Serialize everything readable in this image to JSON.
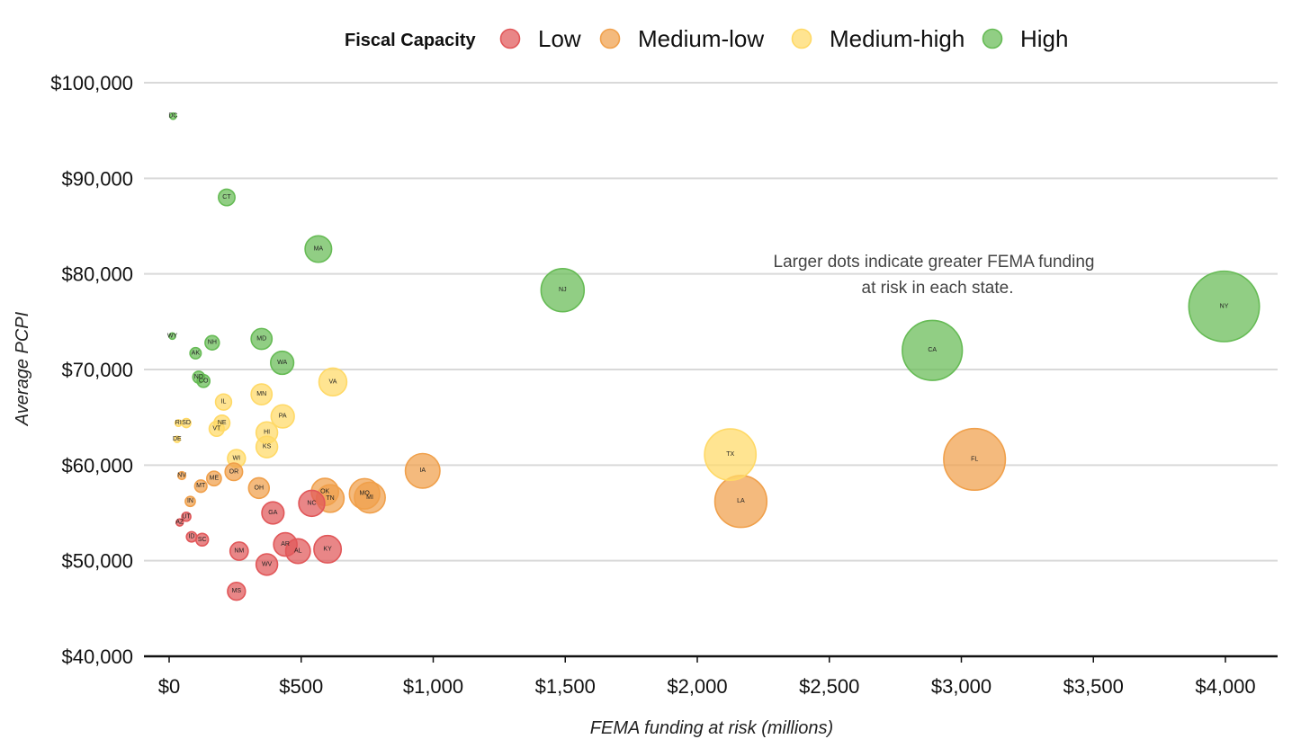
{
  "chart_data": {
    "type": "scatter",
    "legend_title": "Fiscal Capacity",
    "legend_position": "top",
    "xlabel": "FEMA funding at risk (millions)",
    "ylabel": "Average PCPI",
    "annotation": [
      "Larger dots indicate greater FEMA funding",
      "at risk in each state."
    ],
    "xlim": [
      -100,
      4200
    ],
    "ylim": [
      40000,
      100000
    ],
    "x_ticks": [
      0,
      500,
      1000,
      1500,
      2000,
      2500,
      3000,
      3500,
      4000
    ],
    "x_tick_labels": [
      "$0",
      "$500",
      "$1,000",
      "$1,500",
      "$2,000",
      "$2,500",
      "$3,000",
      "$3,500",
      "$4,000"
    ],
    "y_ticks": [
      40000,
      50000,
      60000,
      70000,
      80000,
      90000,
      100000
    ],
    "y_tick_labels": [
      "$40,000",
      "$50,000",
      "$60,000",
      "$70,000",
      "$80,000",
      "$90,000",
      "$100,000"
    ],
    "grid": "horizontal",
    "categories": [
      {
        "name": "Low",
        "color": "#e15759"
      },
      {
        "name": "Medium-low",
        "color": "#f0a04b"
      },
      {
        "name": "Medium-high",
        "color": "#ffd966"
      },
      {
        "name": "High",
        "color": "#66bb55"
      }
    ],
    "points": [
      {
        "label": "DC",
        "x": 15,
        "y": 96500,
        "group": "High"
      },
      {
        "label": "CT",
        "x": 218,
        "y": 88000,
        "group": "High"
      },
      {
        "label": "MA",
        "x": 565,
        "y": 82600,
        "group": "High"
      },
      {
        "label": "NJ",
        "x": 1490,
        "y": 78300,
        "group": "High"
      },
      {
        "label": "NY",
        "x": 3995,
        "y": 76600,
        "group": "High"
      },
      {
        "label": "CA",
        "x": 2890,
        "y": 72000,
        "group": "High"
      },
      {
        "label": "WY",
        "x": 12,
        "y": 73500,
        "group": "High"
      },
      {
        "label": "NH",
        "x": 163,
        "y": 72800,
        "group": "High"
      },
      {
        "label": "MD",
        "x": 350,
        "y": 73200,
        "group": "High"
      },
      {
        "label": "AK",
        "x": 100,
        "y": 71700,
        "group": "High"
      },
      {
        "label": "WA",
        "x": 428,
        "y": 70700,
        "group": "High"
      },
      {
        "label": "ND",
        "x": 112,
        "y": 69200,
        "group": "High"
      },
      {
        "label": "CO",
        "x": 130,
        "y": 68800,
        "group": "High"
      },
      {
        "label": "VA",
        "x": 620,
        "y": 68700,
        "group": "Medium-high"
      },
      {
        "label": "MN",
        "x": 350,
        "y": 67400,
        "group": "Medium-high"
      },
      {
        "label": "IL",
        "x": 206,
        "y": 66600,
        "group": "Medium-high"
      },
      {
        "label": "PA",
        "x": 430,
        "y": 65100,
        "group": "Medium-high"
      },
      {
        "label": "RI",
        "x": 35,
        "y": 64400,
        "group": "Medium-high"
      },
      {
        "label": "SD",
        "x": 65,
        "y": 64400,
        "group": "Medium-high"
      },
      {
        "label": "NE",
        "x": 200,
        "y": 64400,
        "group": "Medium-high"
      },
      {
        "label": "VT",
        "x": 180,
        "y": 63800,
        "group": "Medium-high"
      },
      {
        "label": "HI",
        "x": 370,
        "y": 63400,
        "group": "Medium-high"
      },
      {
        "label": "DE",
        "x": 30,
        "y": 62700,
        "group": "Medium-high"
      },
      {
        "label": "KS",
        "x": 370,
        "y": 61900,
        "group": "Medium-high"
      },
      {
        "label": "TX",
        "x": 2125,
        "y": 61100,
        "group": "Medium-high"
      },
      {
        "label": "WI",
        "x": 255,
        "y": 60700,
        "group": "Medium-high"
      },
      {
        "label": "FL",
        "x": 3050,
        "y": 60600,
        "group": "Medium-low"
      },
      {
        "label": "IA",
        "x": 960,
        "y": 59400,
        "group": "Medium-low"
      },
      {
        "label": "OR",
        "x": 245,
        "y": 59300,
        "group": "Medium-low"
      },
      {
        "label": "NV",
        "x": 48,
        "y": 58900,
        "group": "Medium-low"
      },
      {
        "label": "ME",
        "x": 170,
        "y": 58600,
        "group": "Medium-low"
      },
      {
        "label": "MT",
        "x": 120,
        "y": 57800,
        "group": "Medium-low"
      },
      {
        "label": "OH",
        "x": 340,
        "y": 57600,
        "group": "Medium-low"
      },
      {
        "label": "OK",
        "x": 590,
        "y": 57200,
        "group": "Medium-low"
      },
      {
        "label": "MO",
        "x": 740,
        "y": 57000,
        "group": "Medium-low"
      },
      {
        "label": "TN",
        "x": 610,
        "y": 56500,
        "group": "Medium-low"
      },
      {
        "label": "MI",
        "x": 760,
        "y": 56600,
        "group": "Medium-low"
      },
      {
        "label": "IN",
        "x": 80,
        "y": 56200,
        "group": "Medium-low"
      },
      {
        "label": "LA",
        "x": 2165,
        "y": 56200,
        "group": "Medium-low"
      },
      {
        "label": "NC",
        "x": 540,
        "y": 56000,
        "group": "Low"
      },
      {
        "label": "GA",
        "x": 393,
        "y": 55000,
        "group": "Low"
      },
      {
        "label": "UT",
        "x": 65,
        "y": 54600,
        "group": "Low"
      },
      {
        "label": "AZ",
        "x": 40,
        "y": 54000,
        "group": "Low"
      },
      {
        "label": "ID",
        "x": 85,
        "y": 52500,
        "group": "Low"
      },
      {
        "label": "SC",
        "x": 125,
        "y": 52200,
        "group": "Low"
      },
      {
        "label": "AR",
        "x": 440,
        "y": 51700,
        "group": "Low"
      },
      {
        "label": "KY",
        "x": 600,
        "y": 51200,
        "group": "Low"
      },
      {
        "label": "AL",
        "x": 488,
        "y": 51000,
        "group": "Low"
      },
      {
        "label": "NM",
        "x": 265,
        "y": 51000,
        "group": "Low"
      },
      {
        "label": "WV",
        "x": 370,
        "y": 49600,
        "group": "Low"
      },
      {
        "label": "MS",
        "x": 255,
        "y": 46800,
        "group": "Low"
      }
    ]
  }
}
